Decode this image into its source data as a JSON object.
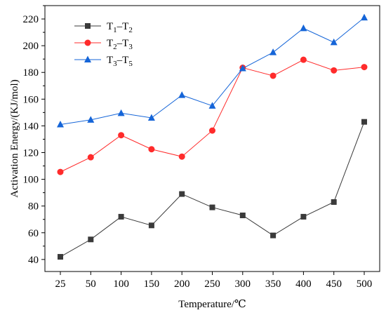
{
  "chart_data": {
    "type": "line",
    "title": "",
    "xlabel": "Temperature/℃",
    "ylabel": "Activation Energy/(KJ/mol)",
    "categories": [
      "25",
      "50",
      "100",
      "150",
      "200",
      "250",
      "300",
      "350",
      "400",
      "450",
      "500"
    ],
    "yticks": [
      40,
      60,
      80,
      100,
      120,
      140,
      160,
      180,
      200,
      220
    ],
    "ylim": [
      31,
      230
    ],
    "grid": false,
    "legend_position": "top-left",
    "series": [
      {
        "name": "T1–T2",
        "label_main": "T",
        "label_sub1": "1",
        "label_dash": "–T",
        "label_sub2": "2",
        "color": "#3a3a3a",
        "marker": "square",
        "values": [
          42,
          55,
          72,
          65.5,
          89,
          79,
          73,
          58,
          72,
          83,
          143
        ]
      },
      {
        "name": "T2–T3",
        "label_main": "T",
        "label_sub1": "2",
        "label_dash": "–T",
        "label_sub2": "3",
        "color": "#ff2b2b",
        "marker": "circle",
        "values": [
          105.5,
          116.5,
          133,
          122.5,
          117,
          136.5,
          183.5,
          177.5,
          189.5,
          181.5,
          184
        ]
      },
      {
        "name": "T3–T5",
        "label_main": "T",
        "label_sub1": "3",
        "label_dash": "–T",
        "label_sub2": "5",
        "color": "#1565d8",
        "marker": "triangle",
        "values": [
          141,
          144.5,
          149.5,
          146,
          163,
          155,
          183,
          195,
          213,
          202.5,
          221
        ]
      }
    ]
  }
}
